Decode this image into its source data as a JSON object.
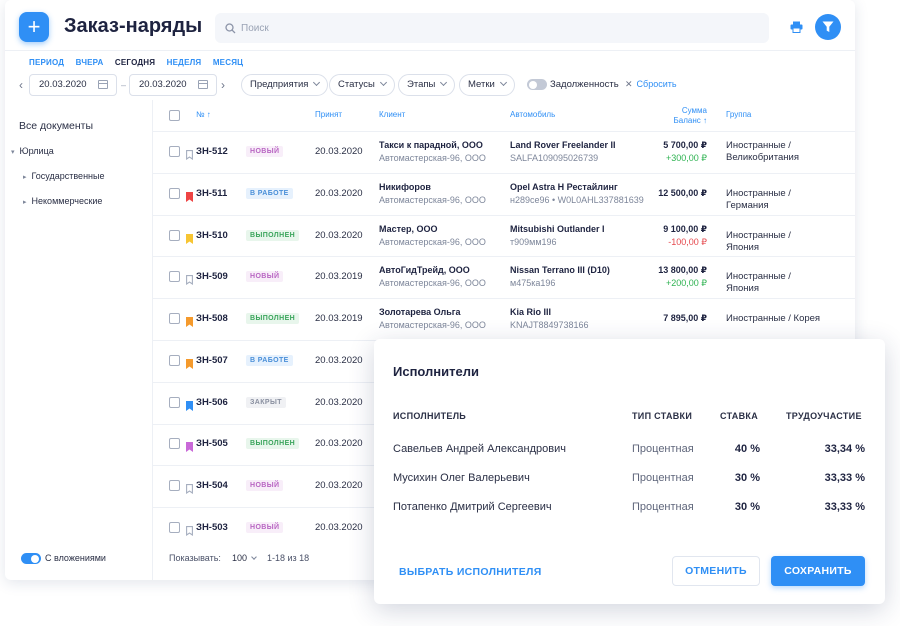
{
  "colors": {
    "accent": "#2f8ff5",
    "positive": "#2fb352",
    "negative": "#e5484d",
    "badge_new_bg": "#f8eef9",
    "badge_new_fg": "#b865c2",
    "badge_work_bg": "#e6f1fd",
    "badge_work_fg": "#4a8fd8",
    "badge_done_bg": "#e8f6ec",
    "badge_done_fg": "#3ba55c",
    "badge_closed_bg": "#f0f1f4",
    "badge_closed_fg": "#8a90a0",
    "bookmark_red": "#ee4444",
    "bookmark_yellow": "#f7c533",
    "bookmark_orange": "#f59a2c",
    "bookmark_blue": "#2f8ff5",
    "bookmark_purple": "#c969d8"
  },
  "header": {
    "add_icon": "plus-icon",
    "title": "Заказ-наряды",
    "search_placeholder": "Поиск",
    "print_icon": "printer-icon",
    "filter_icon": "filter-icon"
  },
  "period": {
    "items": [
      "ПЕРИОД",
      "ВЧЕРА",
      "СЕГОДНЯ",
      "НЕДЕЛЯ",
      "МЕСЯЦ"
    ],
    "active": "СЕГОДНЯ"
  },
  "filters": {
    "date_from": "20.03.2020",
    "date_to": "20.03.2020",
    "enterprises": "Предприятия",
    "statuses": "Статусы",
    "stages": "Этапы",
    "tags": "Метки",
    "debt_label": "Задолженность",
    "debt_on": false,
    "reset": "Сбросить"
  },
  "sidebar": {
    "all": "Все документы",
    "legal": "Юрлица",
    "state": "Государственные",
    "noncommercial": "Некоммерческие",
    "nested_label": "С вложениями",
    "nested_on": true
  },
  "table": {
    "headers": {
      "num": "№ ↑",
      "accepted": "Принят",
      "client": "Клиент",
      "car": "Автомобиль",
      "sum": "Сумма",
      "balance": "Баланс ↑",
      "group": "Группа"
    },
    "rows": [
      {
        "num": "ЗН-512",
        "bookmark": "none",
        "status": "новый",
        "status_kind": "new",
        "date": "20.03.2020",
        "client": "Такси к парадной, ООО",
        "client_sub": "Автомастерская-96, ООО",
        "car": "Land Rover Freelander II",
        "car_sub": "SALFA109095026739",
        "sum": "5 700,00 ₽",
        "balance": "+300,00 ₽",
        "balance_kind": "pos",
        "group": "Иностранные / Великобритания"
      },
      {
        "num": "ЗН-511",
        "bookmark": "red",
        "status": "в работе",
        "status_kind": "work",
        "date": "20.03.2020",
        "client": "Никифоров",
        "client_sub": "Автомастерская-96, ООО",
        "car": "Opel Astra H Рестайлинг",
        "car_sub": "н289се96 • W0L0AHL337881639",
        "sum": "12 500,00 ₽",
        "balance": "",
        "balance_kind": "",
        "group": "Иностранные / Германия"
      },
      {
        "num": "ЗН-510",
        "bookmark": "yellow",
        "status": "выполнен",
        "status_kind": "done",
        "date": "20.03.2020",
        "client": "Мастер, ООО",
        "client_sub": "Автомастерская-96, ООО",
        "car": "Mitsubishi Outlander I",
        "car_sub": "т909мм196",
        "sum": "9 100,00 ₽",
        "balance": "-100,00 ₽",
        "balance_kind": "neg",
        "group": "Иностранные / Япония"
      },
      {
        "num": "ЗН-509",
        "bookmark": "none",
        "status": "новый",
        "status_kind": "new",
        "date": "20.03.2019",
        "client": "АвтоГидТрейд, ООО",
        "client_sub": "Автомастерская-96, ООО",
        "car": "Nissan Terrano III (D10)",
        "car_sub": "м475ка196",
        "sum": "13 800,00 ₽",
        "balance": "+200,00 ₽",
        "balance_kind": "pos",
        "group": "Иностранные / Япония"
      },
      {
        "num": "ЗН-508",
        "bookmark": "orange",
        "status": "выполнен",
        "status_kind": "done",
        "date": "20.03.2019",
        "client": "Золотарева Ольга",
        "client_sub": "Автомастерская-96, ООО",
        "car": "Kia Rio III",
        "car_sub": "KNAJT8849738166",
        "sum": "7 895,00 ₽",
        "balance": "",
        "balance_kind": "",
        "group": "Иностранные / Корея"
      },
      {
        "num": "ЗН-507",
        "bookmark": "orange",
        "status": "в работе",
        "status_kind": "work",
        "date": "20.03.2020"
      },
      {
        "num": "ЗН-506",
        "bookmark": "blue",
        "status": "закрыт",
        "status_kind": "closed",
        "date": "20.03.2020"
      },
      {
        "num": "ЗН-505",
        "bookmark": "purple",
        "status": "выполнен",
        "status_kind": "done",
        "date": "20.03.2020"
      },
      {
        "num": "ЗН-504",
        "bookmark": "none",
        "status": "новый",
        "status_kind": "new",
        "date": "20.03.2020"
      },
      {
        "num": "ЗН-503",
        "bookmark": "none",
        "status": "новый",
        "status_kind": "new",
        "date": "20.03.2020"
      }
    ]
  },
  "footer": {
    "show_label": "Показывать:",
    "page_size": "100",
    "range": "1-18 из 18"
  },
  "dialog": {
    "title": "Исполнители",
    "headers": {
      "name": "ИСПОЛНИТЕЛЬ",
      "rate_type": "ТИП СТАВКИ",
      "rate": "СТАВКА",
      "share": "ТРУДОУЧАСТИЕ"
    },
    "rows": [
      {
        "name": "Савельев Андрей Александрович",
        "rate_type": "Процентная",
        "rate": "40 %",
        "share": "33,34 %"
      },
      {
        "name": "Мусихин Олег Валерьевич",
        "rate_type": "Процентная",
        "rate": "30 %",
        "share": "33,33 %"
      },
      {
        "name": "Потапенко Дмитрий Сергеевич",
        "rate_type": "Процентная",
        "rate": "30 %",
        "share": "33,33 %"
      }
    ],
    "choose": "ВЫБРАТЬ ИСПОЛНИТЕЛЯ",
    "cancel": "ОТМЕНИТЬ",
    "save": "СОХРАНИТЬ"
  }
}
